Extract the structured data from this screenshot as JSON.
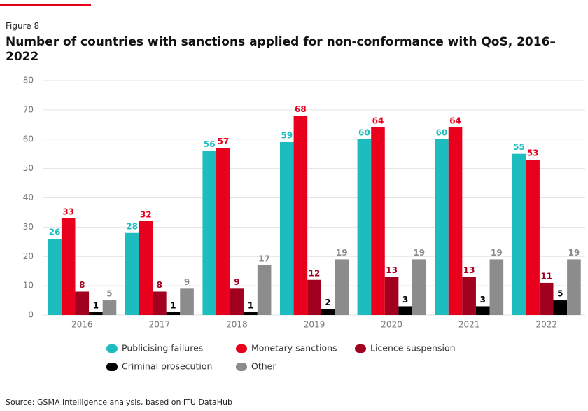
{
  "figure_label": "Figure 8",
  "source": "Source: GSMA Intelligence analysis, based on ITU DataHub",
  "chart_data": {
    "type": "bar",
    "title": "Number of countries with sanctions applied for non-conformance with QoS, 2016–2022",
    "categories": [
      "2016",
      "2017",
      "2018",
      "2019",
      "2020",
      "2021",
      "2022"
    ],
    "series": [
      {
        "name": "Publicising failures",
        "color": "#1dbdbf",
        "values": [
          26,
          28,
          56,
          59,
          60,
          60,
          55
        ]
      },
      {
        "name": "Monetary sanctions",
        "color": "#e8001c",
        "values": [
          33,
          32,
          57,
          68,
          64,
          64,
          53
        ]
      },
      {
        "name": "Licence suspension",
        "color": "#a1001f",
        "values": [
          8,
          8,
          9,
          12,
          13,
          13,
          11
        ]
      },
      {
        "name": "Criminal prosecution",
        "color": "#000000",
        "values": [
          1,
          1,
          1,
          2,
          3,
          3,
          5
        ]
      },
      {
        "name": "Other",
        "color": "#8c8c8c",
        "values": [
          5,
          9,
          17,
          19,
          19,
          19,
          19
        ]
      }
    ],
    "ylim": [
      0,
      80
    ],
    "yticks": [
      0,
      10,
      20,
      30,
      40,
      50,
      60,
      70,
      80
    ],
    "grid": true
  }
}
